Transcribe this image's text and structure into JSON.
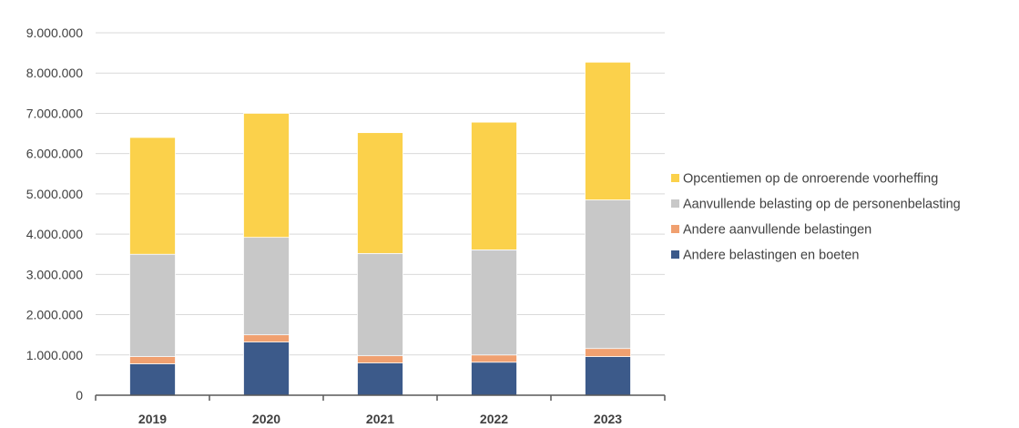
{
  "chart_data": {
    "type": "bar",
    "stacked": true,
    "categories": [
      "2019",
      "2020",
      "2021",
      "2022",
      "2023"
    ],
    "series": [
      {
        "name": "Andere belastingen en boeten",
        "color": "#3C5A8A",
        "values": [
          780000,
          1320000,
          800000,
          820000,
          960000
        ]
      },
      {
        "name": "Andere aanvullende belastingen",
        "color": "#F0A070",
        "values": [
          180000,
          180000,
          180000,
          180000,
          200000
        ]
      },
      {
        "name": "Aanvullende belasting op de personenbelasting",
        "color": "#C8C8C8",
        "values": [
          2540000,
          2420000,
          2540000,
          2610000,
          3690000
        ]
      },
      {
        "name": "Opcentiemen op de onroerende voorheffing",
        "color": "#FBD14B",
        "values": [
          2900000,
          3080000,
          3000000,
          3170000,
          3420000
        ]
      }
    ],
    "yticks": [
      "0",
      "1.000.000",
      "2.000.000",
      "3.000.000",
      "4.000.000",
      "5.000.000",
      "6.000.000",
      "7.000.000",
      "8.000.000",
      "9.000.000"
    ],
    "ylim": [
      0,
      9000000
    ],
    "grid": true,
    "legend_position": "right",
    "legend_order": [
      3,
      2,
      1,
      0
    ],
    "title": "",
    "xlabel": "",
    "ylabel": ""
  }
}
